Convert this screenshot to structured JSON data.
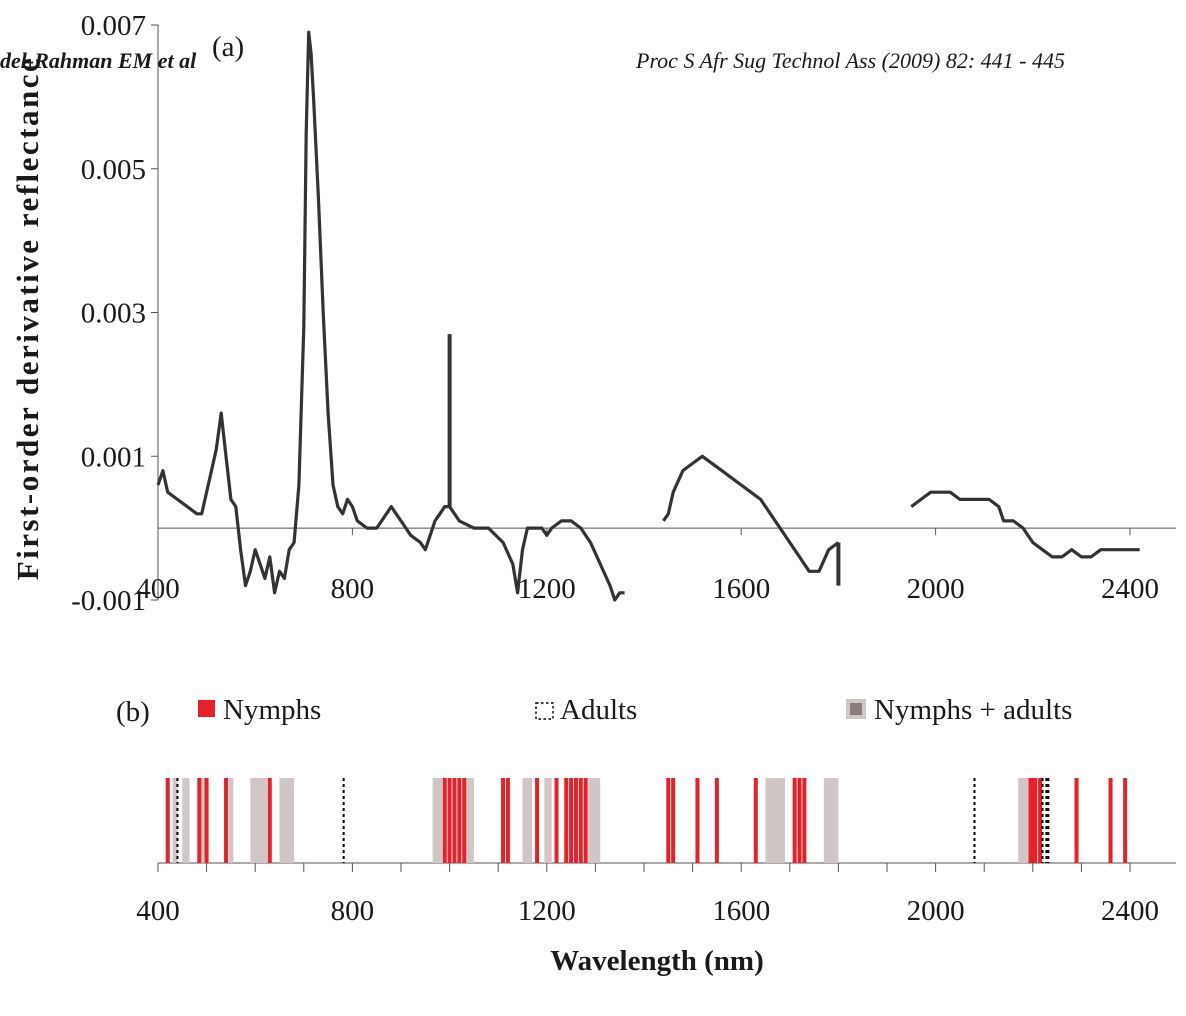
{
  "header": {
    "left": "del-Rahman EM et al",
    "right": "Proc S Afr Sug Technol Ass (2009) 82: 441 - 445"
  },
  "panels": {
    "a_label": "(a)",
    "b_label": "(b)"
  },
  "colors": {
    "line": "#333333",
    "nymphs": "#e8202a",
    "adults": "#000000",
    "nymphs_adults": "#cfc6c6"
  },
  "chart_data": [
    {
      "type": "line",
      "panel": "a",
      "ylabel": "First-order derivative reflectance",
      "xlabel": "",
      "xlim": [
        400,
        2400
      ],
      "ylim": [
        -0.001,
        0.007
      ],
      "x_ticks": [
        400,
        800,
        1200,
        1600,
        2000,
        2400
      ],
      "y_ticks": [
        -0.001,
        0.001,
        0.003,
        0.005,
        0.007
      ],
      "y_tick_labels": [
        "-0.001",
        "0.001",
        "0.003",
        "0.005",
        "0.007"
      ],
      "x_tick_labels": [
        "400",
        "800",
        "1200",
        "1600",
        "2000",
        "2400"
      ],
      "grid": false,
      "series": [
        {
          "segments": [
            [
              [
                400,
                0.0006
              ],
              [
                410,
                0.0008
              ],
              [
                420,
                0.0005
              ],
              [
                440,
                0.0004
              ],
              [
                460,
                0.0003
              ],
              [
                480,
                0.0002
              ],
              [
                490,
                0.0002
              ],
              [
                500,
                0.0005
              ],
              [
                510,
                0.0008
              ],
              [
                520,
                0.0011
              ],
              [
                530,
                0.0016
              ],
              [
                540,
                0.001
              ],
              [
                550,
                0.0004
              ],
              [
                560,
                0.0003
              ],
              [
                570,
                -0.0003
              ],
              [
                580,
                -0.0008
              ],
              [
                590,
                -0.0006
              ],
              [
                600,
                -0.0003
              ],
              [
                610,
                -0.0005
              ],
              [
                620,
                -0.0007
              ],
              [
                630,
                -0.0004
              ],
              [
                640,
                -0.0009
              ],
              [
                650,
                -0.0006
              ],
              [
                660,
                -0.0007
              ],
              [
                670,
                -0.0003
              ],
              [
                680,
                -0.0002
              ],
              [
                690,
                0.0006
              ],
              [
                700,
                0.0028
              ],
              [
                705,
                0.0055
              ],
              [
                710,
                0.0069
              ],
              [
                715,
                0.0066
              ],
              [
                720,
                0.006
              ],
              [
                730,
                0.0046
              ],
              [
                740,
                0.003
              ],
              [
                750,
                0.0016
              ],
              [
                760,
                0.0006
              ],
              [
                770,
                0.0003
              ],
              [
                780,
                0.0002
              ],
              [
                790,
                0.0004
              ],
              [
                800,
                0.0003
              ],
              [
                810,
                0.0001
              ],
              [
                830,
                0.0
              ],
              [
                850,
                0.0
              ],
              [
                870,
                0.0002
              ],
              [
                880,
                0.0003
              ],
              [
                890,
                0.0002
              ],
              [
                900,
                0.0001
              ],
              [
                920,
                -0.0001
              ],
              [
                940,
                -0.0002
              ],
              [
                950,
                -0.0003
              ],
              [
                960,
                -0.0001
              ],
              [
                970,
                0.0001
              ],
              [
                980,
                0.0002
              ],
              [
                990,
                0.0003
              ],
              [
                1000,
                0.0003
              ],
              [
                1010,
                0.0002
              ],
              [
                1020,
                0.0001
              ],
              [
                1050,
                0.0
              ],
              [
                1080,
                0.0
              ],
              [
                1110,
                -0.0002
              ],
              [
                1130,
                -0.0005
              ],
              [
                1140,
                -0.0009
              ],
              [
                1150,
                -0.0003
              ],
              [
                1160,
                0.0
              ],
              [
                1170,
                0.0
              ],
              [
                1190,
                0.0
              ],
              [
                1200,
                -0.0001
              ],
              [
                1210,
                0.0
              ],
              [
                1230,
                0.0001
              ],
              [
                1250,
                0.0001
              ],
              [
                1270,
                0.0
              ],
              [
                1290,
                -0.0002
              ],
              [
                1310,
                -0.0005
              ],
              [
                1330,
                -0.0008
              ],
              [
                1340,
                -0.001
              ],
              [
                1350,
                -0.0009
              ],
              [
                1360,
                -0.0009
              ]
            ],
            [
              [
                1440,
                0.0001
              ],
              [
                1450,
                0.0002
              ],
              [
                1460,
                0.0005
              ],
              [
                1480,
                0.0008
              ],
              [
                1500,
                0.0009
              ],
              [
                1520,
                0.001
              ],
              [
                1540,
                0.0009
              ],
              [
                1560,
                0.0008
              ],
              [
                1580,
                0.0007
              ],
              [
                1600,
                0.0006
              ],
              [
                1620,
                0.0005
              ],
              [
                1640,
                0.0004
              ],
              [
                1660,
                0.0002
              ],
              [
                1680,
                0.0
              ],
              [
                1700,
                -0.0002
              ],
              [
                1720,
                -0.0004
              ],
              [
                1740,
                -0.0006
              ],
              [
                1760,
                -0.0006
              ],
              [
                1780,
                -0.0003
              ],
              [
                1800,
                -0.0002
              ]
            ],
            [
              [
                1950,
                0.0003
              ],
              [
                1970,
                0.0004
              ],
              [
                1990,
                0.0005
              ],
              [
                2010,
                0.0005
              ],
              [
                2030,
                0.0005
              ],
              [
                2050,
                0.0004
              ],
              [
                2070,
                0.0004
              ],
              [
                2090,
                0.0004
              ],
              [
                2110,
                0.0004
              ],
              [
                2130,
                0.0003
              ],
              [
                2140,
                0.0001
              ],
              [
                2160,
                0.0001
              ],
              [
                2180,
                0.0
              ],
              [
                2200,
                -0.0002
              ],
              [
                2220,
                -0.0003
              ],
              [
                2240,
                -0.0004
              ],
              [
                2260,
                -0.0004
              ],
              [
                2280,
                -0.0003
              ],
              [
                2300,
                -0.0004
              ],
              [
                2320,
                -0.0004
              ],
              [
                2340,
                -0.0003
              ],
              [
                2360,
                -0.0003
              ],
              [
                2380,
                -0.0003
              ],
              [
                2400,
                -0.0003
              ],
              [
                2420,
                -0.0003
              ]
            ]
          ],
          "spikes": [
            {
              "x": 1000,
              "y_from": 0.0003,
              "y_to": 0.0027
            },
            {
              "x": 1800,
              "y_from": -0.0002,
              "y_to": -0.0008
            }
          ]
        }
      ]
    },
    {
      "type": "bar",
      "panel": "b",
      "xlabel": "Wavelength (nm)",
      "xlim": [
        400,
        2400
      ],
      "x_ticks": [
        400,
        800,
        1200,
        1600,
        2000,
        2400
      ],
      "x_tick_labels": [
        "400",
        "800",
        "1200",
        "1600",
        "2000",
        "2400"
      ],
      "legend_position": "top",
      "series": [
        {
          "name": "Nymphs + adults",
          "kind": "band",
          "ranges": [
            [
              430,
              440
            ],
            [
              450,
              465
            ],
            [
              485,
              500
            ],
            [
              545,
              555
            ],
            [
              590,
              610
            ],
            [
              610,
              625
            ],
            [
              650,
              680
            ],
            [
              965,
              985
            ],
            [
              1030,
              1050
            ],
            [
              1150,
              1170
            ],
            [
              1195,
              1210
            ],
            [
              1285,
              1310
            ],
            [
              1650,
              1690
            ],
            [
              1770,
              1800
            ],
            [
              2170,
              2190
            ]
          ]
        },
        {
          "name": "Nymphs",
          "kind": "line",
          "positions": [
            420,
            485,
            500,
            540,
            630,
            990,
            1000,
            1010,
            1020,
            1030,
            1110,
            1120,
            1180,
            1220,
            1240,
            1250,
            1260,
            1270,
            1280,
            1450,
            1460,
            1510,
            1550,
            1630,
            1710,
            1720,
            1730,
            2195,
            2200,
            2205,
            2215,
            2290,
            2360,
            2390
          ]
        },
        {
          "name": "Adults",
          "kind": "dashed",
          "positions": [
            440,
            782,
            2080,
            2220,
            2228,
            2232
          ]
        }
      ]
    }
  ]
}
